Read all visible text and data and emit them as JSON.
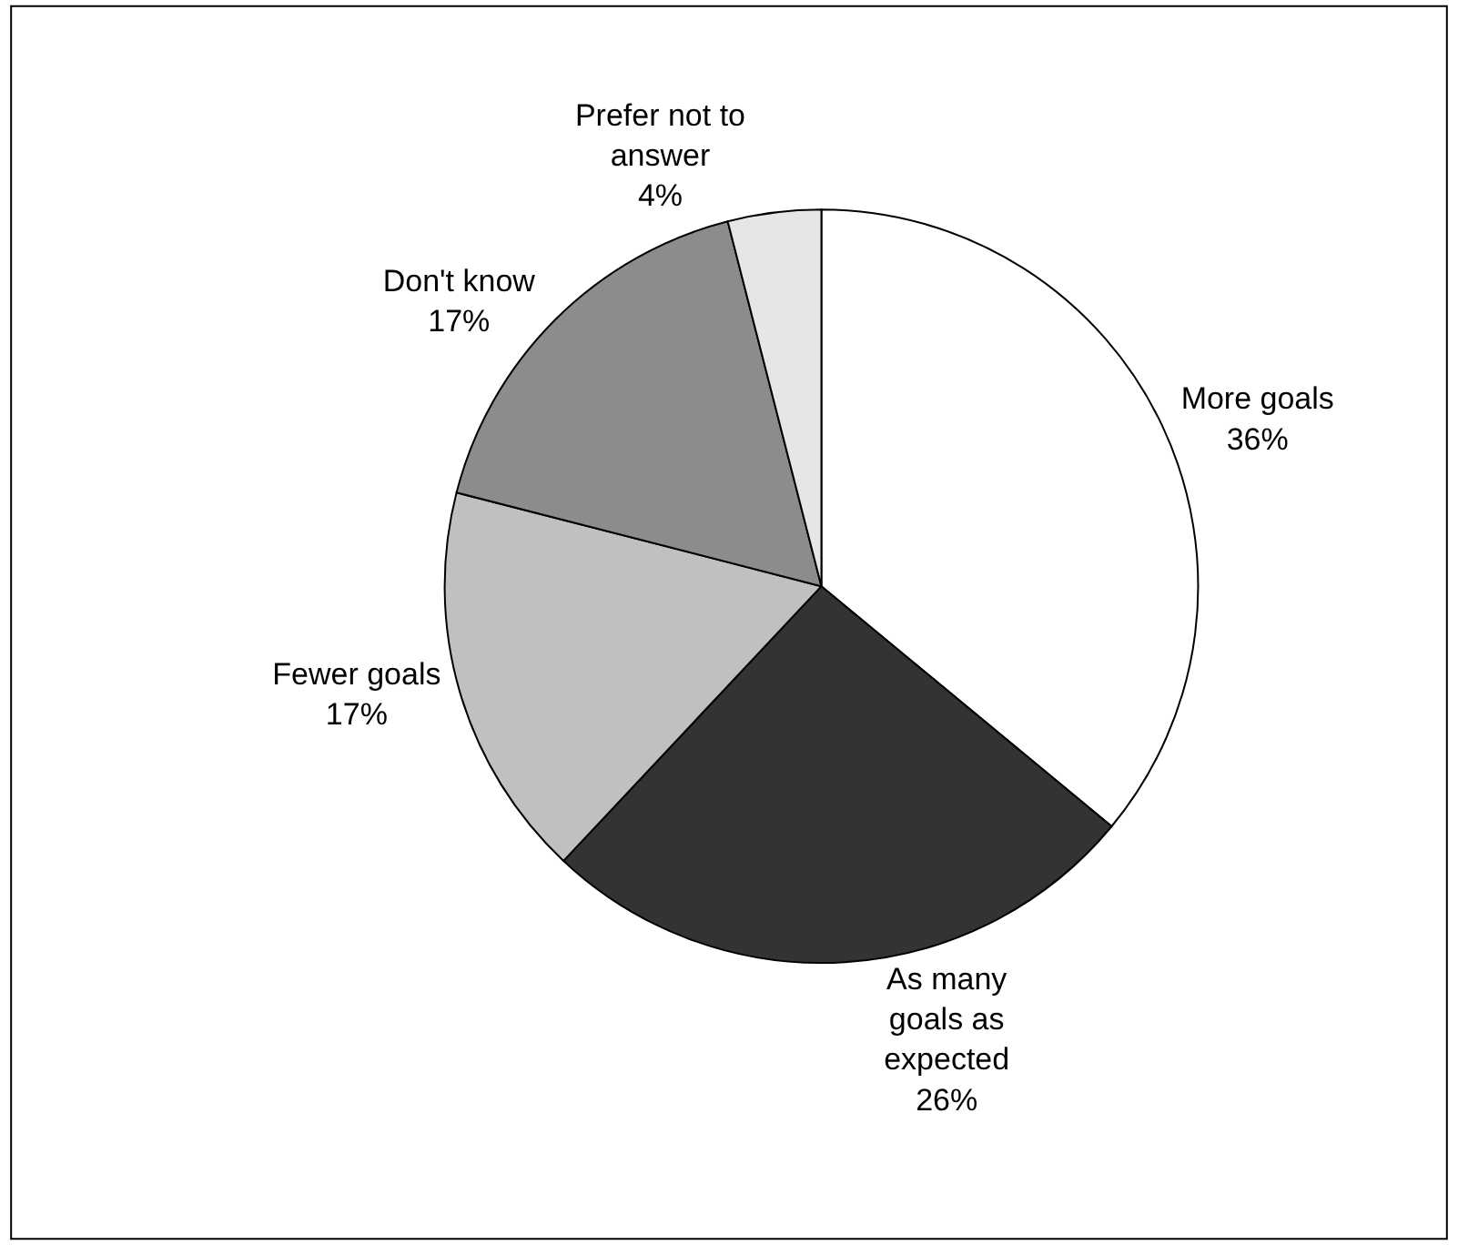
{
  "chart_data": {
    "type": "pie",
    "categories": [
      "More goals",
      "As many\ngoals as\nexpected",
      "Fewer goals",
      "Don't know",
      "Prefer not to\nanswer"
    ],
    "values": [
      36,
      26,
      17,
      17,
      4
    ],
    "value_labels": [
      "36%",
      "26%",
      "17%",
      "17%",
      "4%"
    ],
    "colors": [
      "#ffffff",
      "#333333",
      "#c0c0c0",
      "#8c8c8c",
      "#e6e6e6"
    ],
    "legend": false
  }
}
